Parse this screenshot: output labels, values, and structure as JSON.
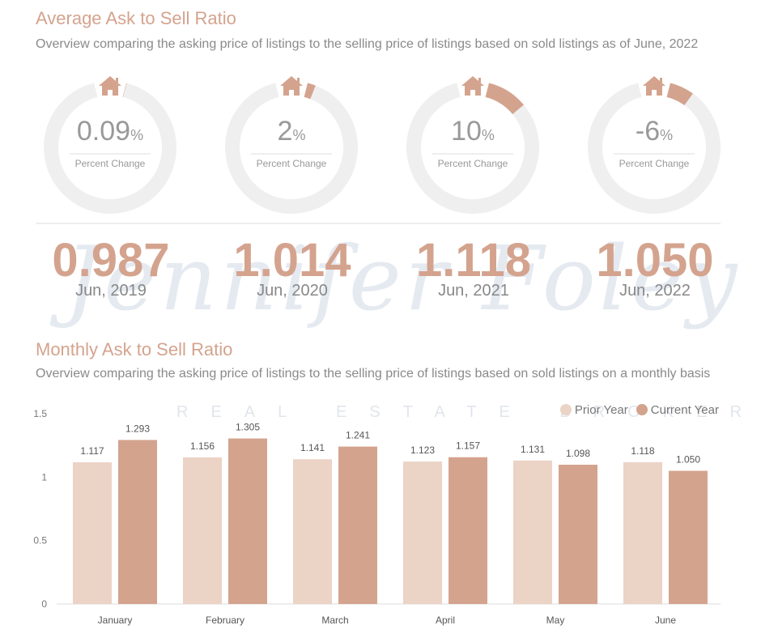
{
  "section1": {
    "title": "Average Ask to Sell Ratio",
    "subtitle": "Overview comparing the asking price of listings to the selling price of listings based on sold listings as of June, 2022"
  },
  "gauges": [
    {
      "value": "0.09",
      "unit": "%",
      "label": "Percent Change",
      "pct": 0.09
    },
    {
      "value": "2",
      "unit": "%",
      "label": "Percent Change",
      "pct": 2
    },
    {
      "value": "10",
      "unit": "%",
      "label": "Percent Change",
      "pct": 10
    },
    {
      "value": "-6",
      "unit": "%",
      "label": "Percent Change",
      "pct": -6
    }
  ],
  "years": [
    {
      "ratio": "0.987",
      "label": "Jun, 2019"
    },
    {
      "ratio": "1.014",
      "label": "Jun, 2020"
    },
    {
      "ratio": "1.118",
      "label": "Jun, 2021"
    },
    {
      "ratio": "1.050",
      "label": "Jun, 2022"
    }
  ],
  "watermark": {
    "name": "Jennifer Foley",
    "tagline": "REAL ESTATE BROKER"
  },
  "section2": {
    "title": "Monthly Ask to Sell Ratio",
    "subtitle": "Overview comparing the asking price of listings to the selling price of listings based on sold listings on a monthly basis"
  },
  "colors": {
    "accent": "#d4a38e",
    "prior": "#ebd3c6",
    "current": "#d4a38e",
    "ring": "#efefef"
  },
  "chart_data": {
    "type": "bar",
    "title": "Monthly Ask to Sell Ratio",
    "categories": [
      "January",
      "February",
      "March",
      "April",
      "May",
      "June"
    ],
    "series": [
      {
        "name": "Prior Year",
        "values": [
          1.117,
          1.156,
          1.141,
          1.123,
          1.131,
          1.118
        ]
      },
      {
        "name": "Current Year",
        "values": [
          1.293,
          1.305,
          1.241,
          1.157,
          1.098,
          1.05
        ]
      }
    ],
    "yticks": [
      "0",
      "0.5",
      "1",
      "1.5"
    ],
    "ylim": [
      0,
      1.5
    ],
    "legend": "top-right"
  }
}
